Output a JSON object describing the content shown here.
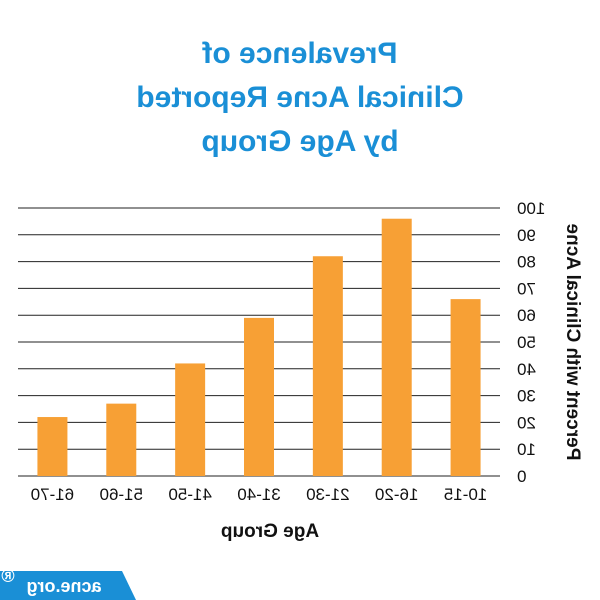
{
  "chart_data": {
    "type": "bar",
    "title_lines": [
      "Prevalence of",
      "Clinical Acne Reported",
      "by Age Group"
    ],
    "xlabel": "Age Group",
    "ylabel": "Percent with Clinical Acne",
    "categories": [
      "10-15",
      "16-20",
      "21-30",
      "31-40",
      "41-50",
      "51-60",
      "61-70"
    ],
    "values": [
      66,
      96,
      82,
      59,
      42,
      27,
      22
    ],
    "ylim": [
      0,
      100
    ],
    "yticks": [
      0,
      10,
      20,
      30,
      40,
      50,
      60,
      70,
      80,
      90,
      100
    ],
    "grid": true,
    "orientation": "mirrored",
    "bar_color": "#f7a035",
    "title_color": "#1a8fd6"
  },
  "branding": {
    "logo_text": "acne.org",
    "logo_mark": "®",
    "logo_color": "#1a8fd6"
  }
}
